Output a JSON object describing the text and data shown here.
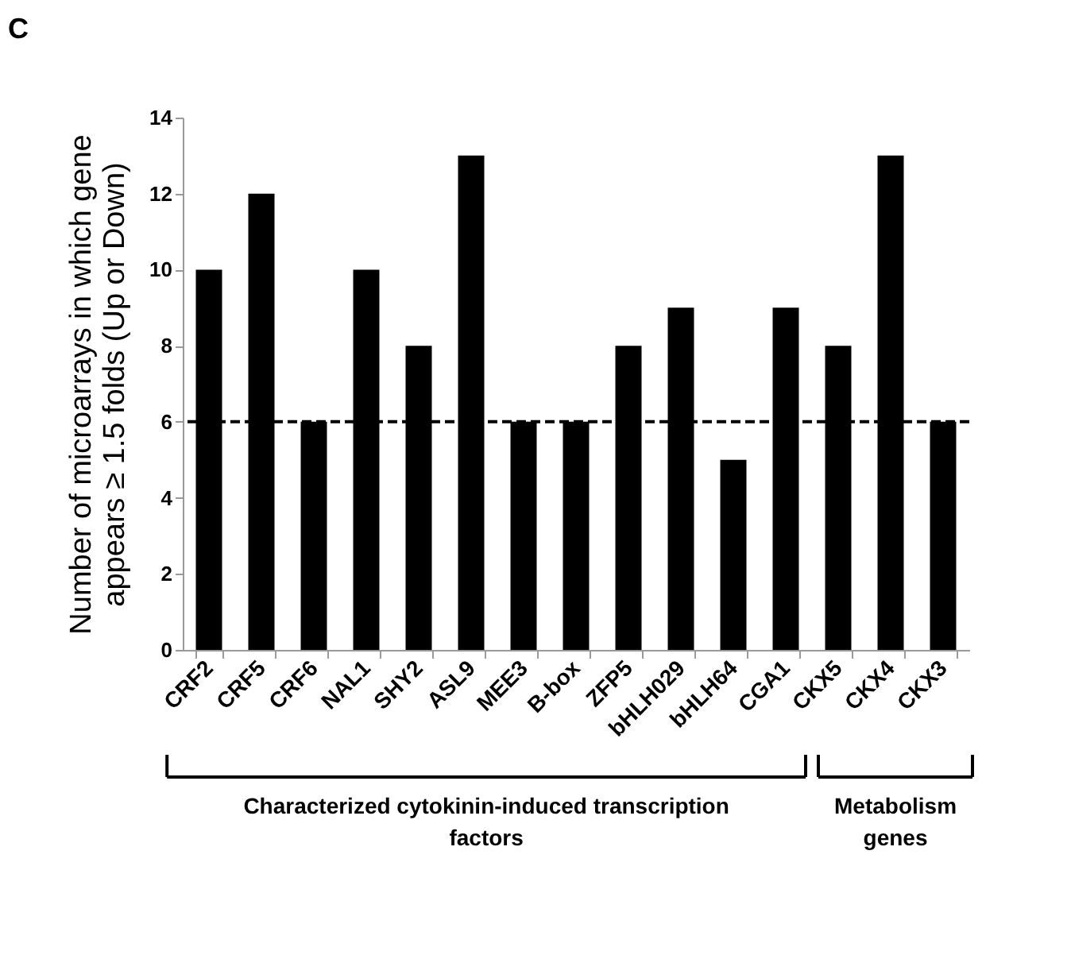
{
  "chart_data": {
    "type": "bar",
    "categories": [
      "CRF2",
      "CRF5",
      "CRF6",
      "NAL1",
      "SHY2",
      "ASL9",
      "MEE3",
      "B-box",
      "ZFP5",
      "bHLH029",
      "bHLH64",
      "CGA1",
      "CKX5",
      "CKX4",
      "CKX3"
    ],
    "values": [
      10,
      12,
      6,
      10,
      8,
      13,
      6,
      6,
      8,
      9,
      5,
      9,
      8,
      13,
      6
    ],
    "color": "#000000",
    "ylabel": "Number of microarrays in which gene appears ≥ 1.5 folds (Up or Down)",
    "ylim": [
      0,
      14
    ],
    "yticks": [
      0,
      2,
      4,
      6,
      8,
      10,
      12,
      14
    ],
    "grid": false,
    "ref_lines": [
      {
        "axis": "y",
        "value": 6,
        "label": null,
        "color": "#000000",
        "line_style": "dashed"
      }
    ],
    "annotations": [
      "C",
      "Characterized cytokinin-induced transcription factors",
      "Metabolism genes"
    ]
  }
}
